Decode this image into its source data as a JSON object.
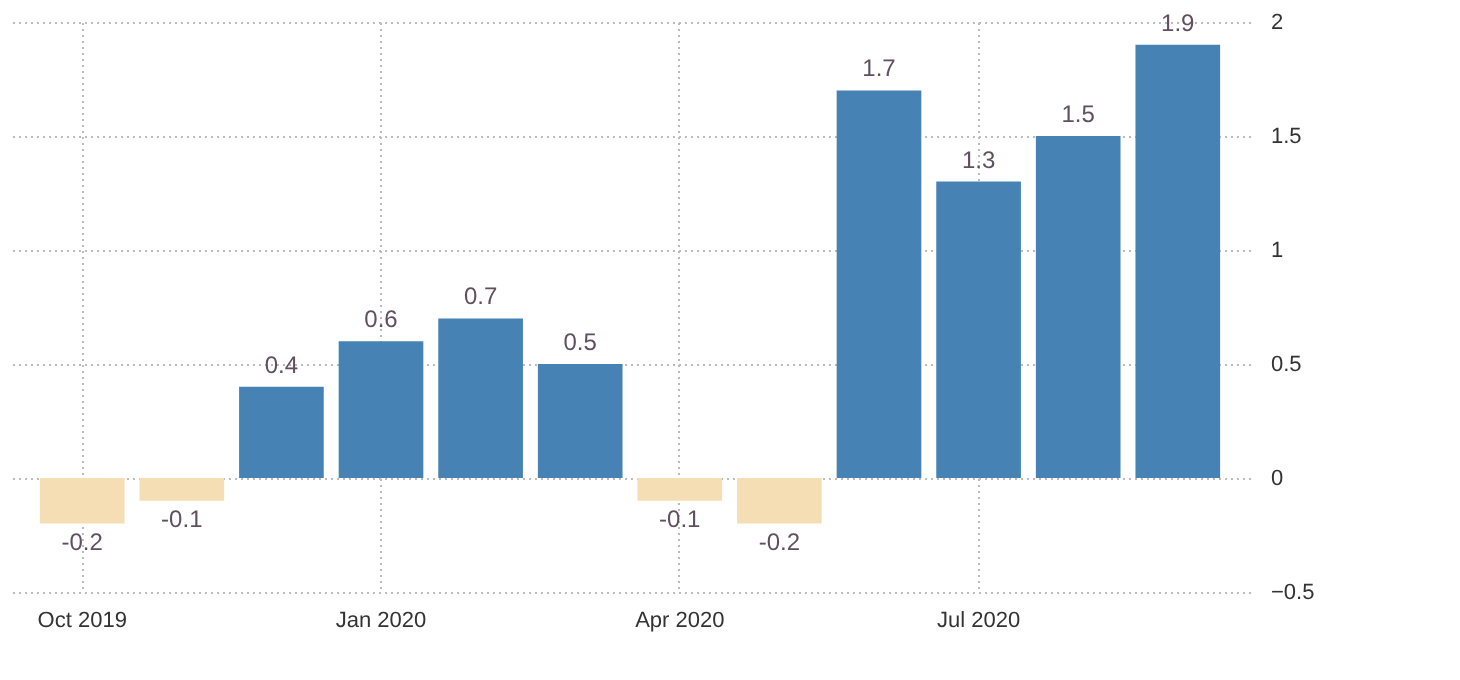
{
  "chart_data": {
    "type": "bar",
    "categories": [
      "Oct 2019",
      null,
      null,
      "Jan 2020",
      null,
      null,
      "Apr 2020",
      null,
      null,
      "Jul 2020",
      null,
      null
    ],
    "values": [
      -0.2,
      -0.1,
      0.4,
      0.6,
      0.7,
      0.5,
      -0.1,
      -0.2,
      1.7,
      1.3,
      1.5,
      1.9
    ],
    "colors": [
      "#f5deb3",
      "#f5deb3",
      "#4682b4",
      "#4682b4",
      "#4682b4",
      "#4682b4",
      "#f5deb3",
      "#f5deb3",
      "#4682b4",
      "#4682b4",
      "#4682b4",
      "#4682b4"
    ],
    "ylim": [
      -0.5,
      2
    ],
    "yticks": [
      -0.5,
      0,
      0.5,
      1,
      1.5,
      2
    ],
    "grid": true,
    "data_labels": true
  }
}
